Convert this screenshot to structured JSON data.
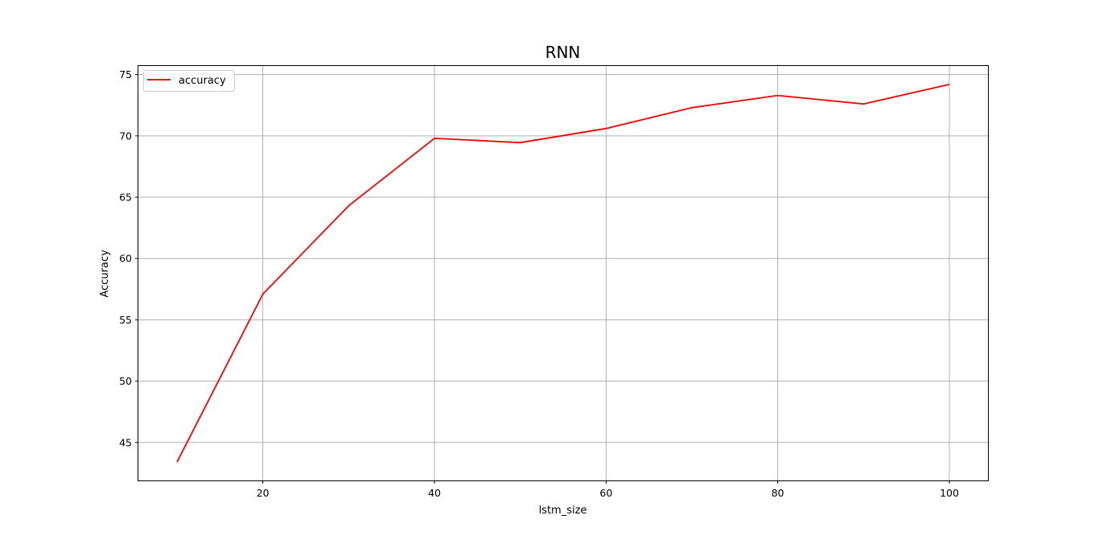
{
  "chart_data": {
    "type": "line",
    "title": "RNN",
    "xlabel": "lstm_size",
    "ylabel": "Accuracy",
    "x": [
      10,
      20,
      30,
      40,
      50,
      60,
      70,
      80,
      90,
      100
    ],
    "series": [
      {
        "name": "accuracy",
        "color": "#ff0000",
        "values": [
          43.4,
          57.1,
          64.3,
          69.8,
          69.45,
          70.6,
          72.3,
          73.3,
          72.6,
          74.2
        ]
      }
    ],
    "xlim": [
      5.5,
      104.5
    ],
    "ylim": [
      41.9,
      75.7
    ],
    "xticks": [
      20,
      40,
      60,
      80,
      100
    ],
    "yticks": [
      45,
      50,
      55,
      60,
      65,
      70,
      75
    ],
    "grid": true,
    "legend_position": "top-left"
  }
}
